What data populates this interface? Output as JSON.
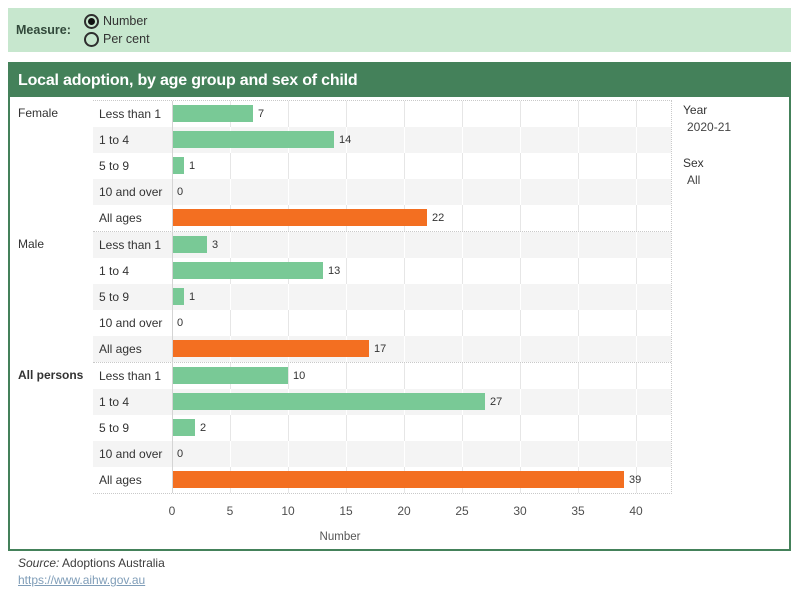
{
  "measure_bar": {
    "label": "Measure:",
    "options": [
      {
        "label": "Number",
        "selected": true
      },
      {
        "label": "Per cent",
        "selected": false
      }
    ]
  },
  "header": {
    "title": "Local adoption, by age group and sex of child"
  },
  "filters": [
    {
      "label": "Year",
      "value": "2020-21"
    },
    {
      "label": "Sex",
      "value": "All"
    }
  ],
  "chart_data": {
    "type": "bar",
    "orientation": "horizontal",
    "title": "Local adoption, by age group and sex of child",
    "xlabel": "Number",
    "x_ticks": [
      0,
      5,
      10,
      15,
      20,
      25,
      30,
      35,
      40
    ],
    "xlim": [
      0,
      43
    ],
    "grid": true,
    "categories": [
      "Less than 1",
      "1 to 4",
      "5 to 9",
      "10 and over",
      "All ages"
    ],
    "groups": [
      {
        "sex": "Female",
        "bold": false,
        "rows": [
          {
            "age": "Less than 1",
            "value": 7
          },
          {
            "age": "1 to 4",
            "value": 14
          },
          {
            "age": "5 to 9",
            "value": 1
          },
          {
            "age": "10 and over",
            "value": 0
          },
          {
            "age": "All ages",
            "value": 22
          }
        ]
      },
      {
        "sex": "Male",
        "bold": false,
        "rows": [
          {
            "age": "Less than 1",
            "value": 3
          },
          {
            "age": "1 to 4",
            "value": 13
          },
          {
            "age": "5 to 9",
            "value": 1
          },
          {
            "age": "10 and over",
            "value": 0
          },
          {
            "age": "All ages",
            "value": 17
          }
        ]
      },
      {
        "sex": "All persons",
        "bold": true,
        "rows": [
          {
            "age": "Less than 1",
            "value": 10
          },
          {
            "age": "1 to 4",
            "value": 27
          },
          {
            "age": "5 to 9",
            "value": 2
          },
          {
            "age": "10 and over",
            "value": 0
          },
          {
            "age": "All ages",
            "value": 39
          }
        ]
      }
    ],
    "colors": {
      "age_bar": "#79c996",
      "total_bar": "#f36f21"
    },
    "legend": "none"
  },
  "footer": {
    "source_prefix": "Source:",
    "source_text": " Adoptions Australia",
    "link": "https://www.aihw.gov.au"
  }
}
